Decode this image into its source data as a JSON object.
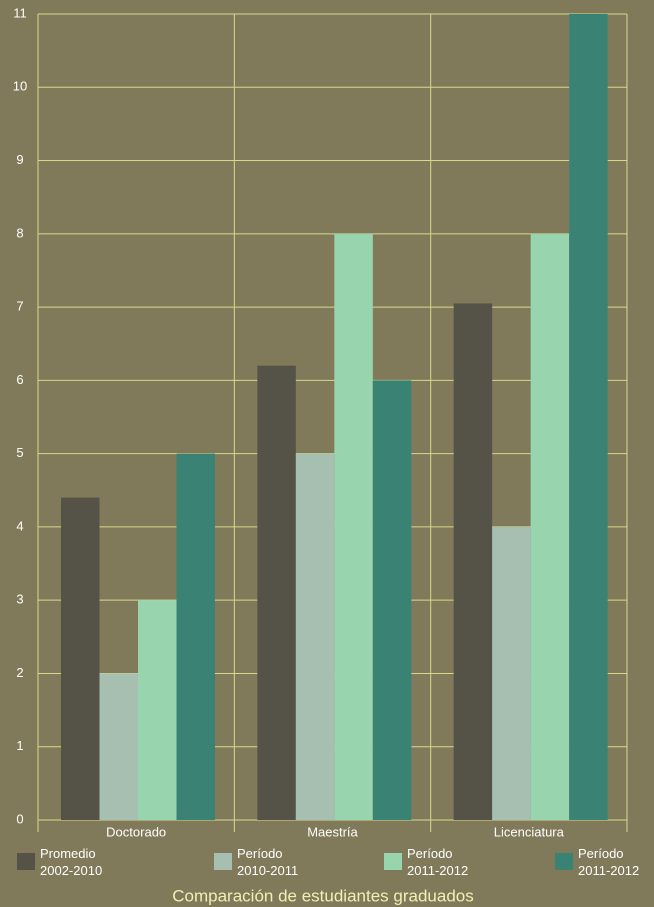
{
  "chart_data": {
    "type": "bar",
    "title": "Comparación de estudiantes graduados",
    "categories": [
      "Doctorado",
      "Maestría",
      "Licenciatura"
    ],
    "series": [
      {
        "name": "Promedio\n2002-2010",
        "color": "#555347",
        "values": [
          4.4,
          6.2,
          7.05
        ]
      },
      {
        "name": "Período\n2010-2011",
        "color": "#a6bfb1",
        "values": [
          2,
          5,
          4
        ]
      },
      {
        "name": "Período\n2011-2012",
        "color": "#98d4ae",
        "values": [
          3,
          8,
          8
        ]
      },
      {
        "name": "Período\n2011-2012",
        "color": "#3a8374",
        "values": [
          5,
          6,
          11
        ]
      }
    ],
    "ylim": [
      0,
      11
    ],
    "yticks": [
      0,
      1,
      2,
      3,
      4,
      5,
      6,
      7,
      8,
      9,
      10,
      11
    ],
    "grid": true
  }
}
